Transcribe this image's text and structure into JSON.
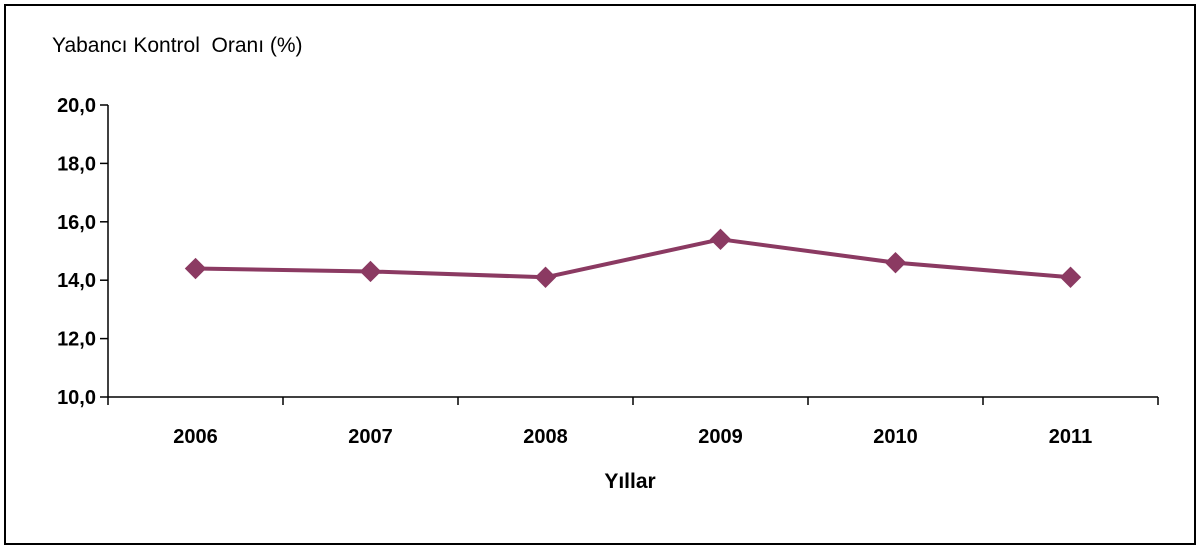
{
  "chart_data": {
    "type": "line",
    "title": "",
    "ylabel": "Yabancı Kontrol  Oranı (%)",
    "xlabel": "Yıllar",
    "categories": [
      "2006",
      "2007",
      "2008",
      "2009",
      "2010",
      "2011"
    ],
    "series": [
      {
        "values": [
          14.4,
          14.3,
          14.1,
          15.4,
          14.6,
          14.1
        ],
        "color": "#8B3A62"
      }
    ],
    "ylim": [
      10,
      20
    ],
    "yticks": [
      "10,0",
      "12,0",
      "14,0",
      "16,0",
      "18,0",
      "20,0"
    ],
    "ytick_values": [
      10,
      12,
      14,
      16,
      18,
      20
    ],
    "grid": false,
    "legend": "none",
    "marker": "diamond"
  }
}
